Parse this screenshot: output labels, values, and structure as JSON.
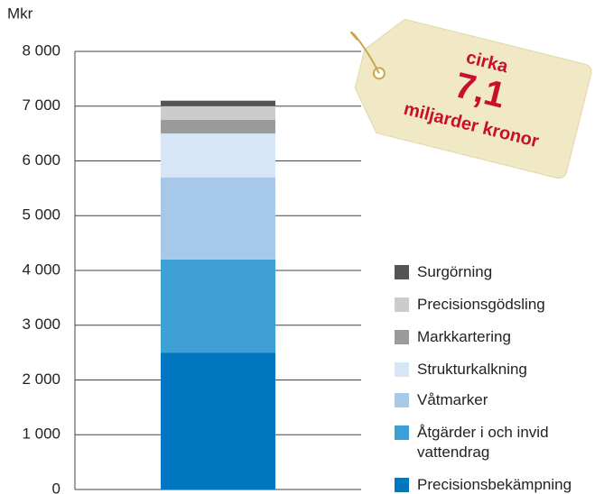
{
  "chart_data": {
    "type": "stacked_bar",
    "y_label": "Mkr",
    "annotation": {
      "line1": "cirka",
      "line2": "7,1",
      "line3": "miljarder kronor"
    },
    "categories": [
      null
    ],
    "series": [
      {
        "name": "Precisionsbekämpning",
        "color": "#0077c0",
        "values": [
          2500
        ]
      },
      {
        "name": "Åtgärder i och invid vattendrag",
        "color": "#3fa0d6",
        "values": [
          1700
        ]
      },
      {
        "name": "Våtmarker",
        "color": "#a7c9e9",
        "values": [
          1500
        ]
      },
      {
        "name": "Strukturkalkning",
        "color": "#d6e6f6",
        "values": [
          800
        ]
      },
      {
        "name": "Markkartering",
        "color": "#9b9b9b",
        "values": [
          250
        ]
      },
      {
        "name": "Precisionsgödsling",
        "color": "#cccccc",
        "values": [
          250
        ]
      },
      {
        "name": "Surgörning",
        "color": "#555555",
        "values": [
          100
        ]
      }
    ],
    "ylim": [
      0,
      8000
    ],
    "yticks": [
      0,
      {
        "value": 1000,
        "label": "1 000"
      },
      {
        "value": 2000,
        "label": "2 000"
      },
      {
        "value": 3000,
        "label": "3 000"
      },
      {
        "value": 4000,
        "label": "4 000"
      },
      {
        "value": 5000,
        "label": "5 000"
      },
      {
        "value": 6000,
        "label": "6 000"
      },
      {
        "value": 7000,
        "label": "7 000"
      },
      {
        "value": 8000,
        "label": "8 000"
      }
    ],
    "grid": true
  }
}
